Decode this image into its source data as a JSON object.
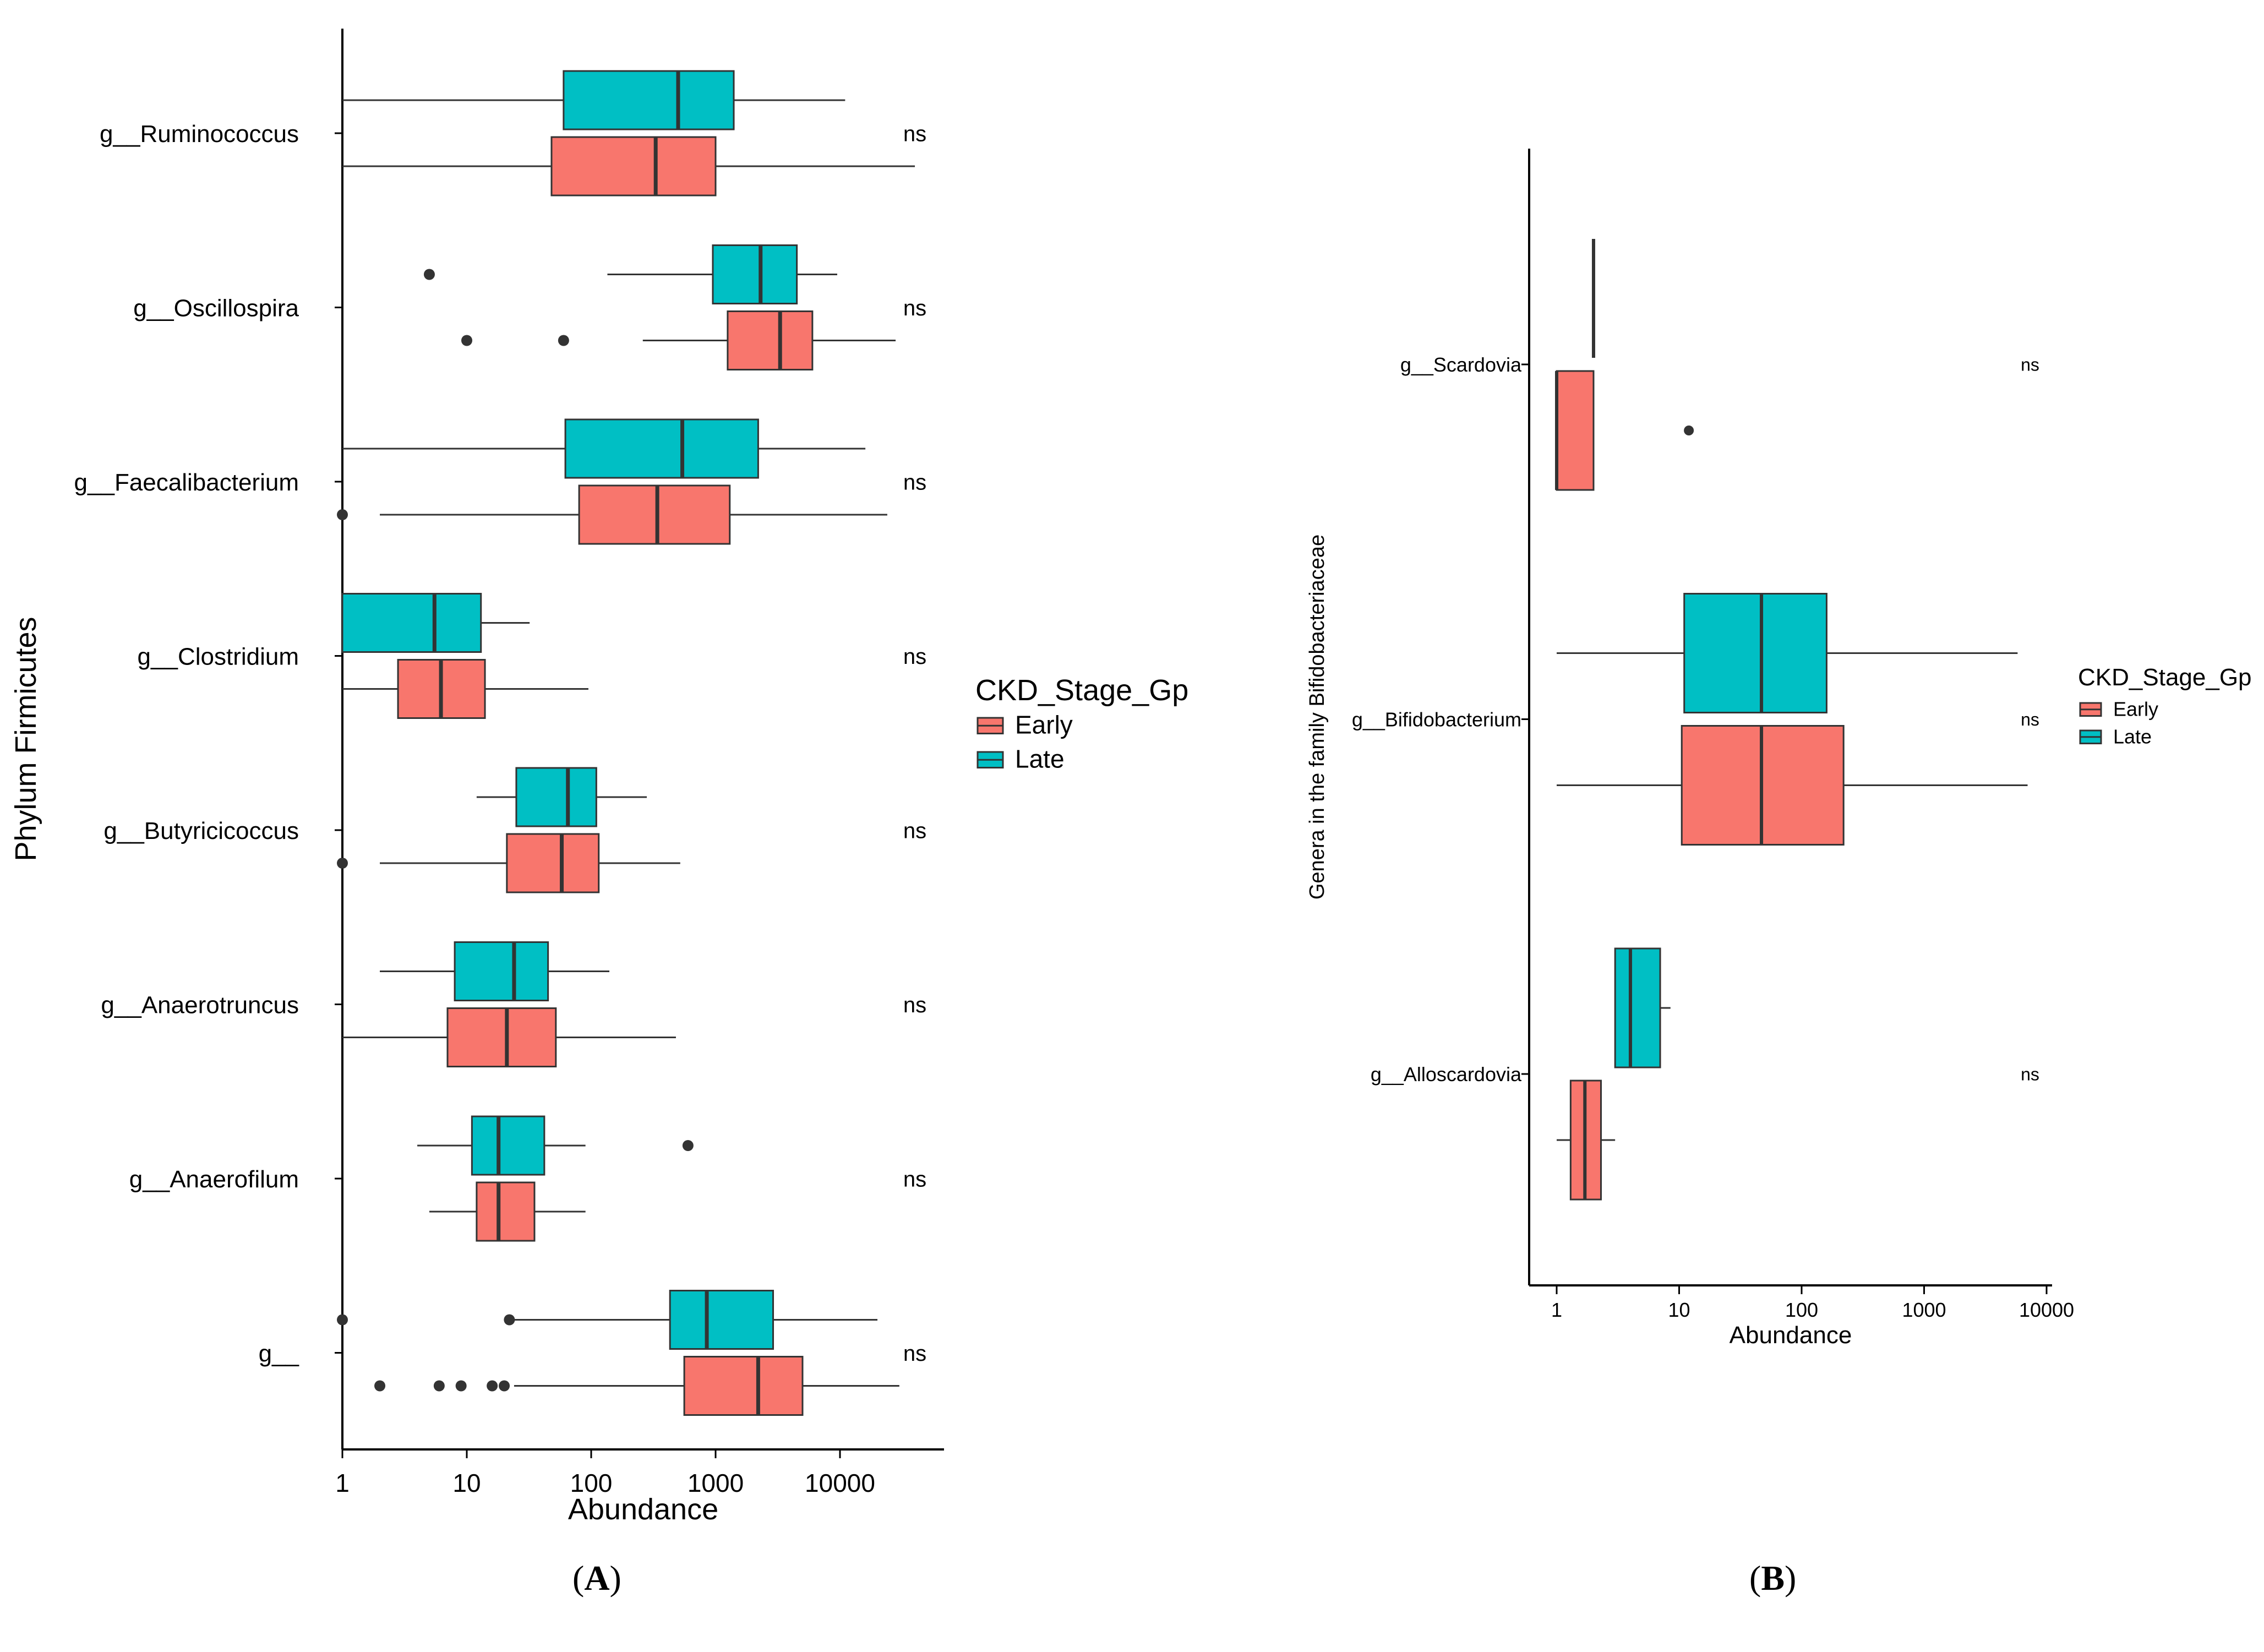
{
  "colors": {
    "early": "#F8766D",
    "late": "#00BFC4",
    "stroke": "#333333",
    "axis": "#000000"
  },
  "chart_data": [
    {
      "panel": "A",
      "type": "boxplot",
      "orientation": "horizontal",
      "xscale": "log10",
      "xlabel": "Abundance",
      "ylabel": "Phylum Firmicutes",
      "xlim": [
        0.8,
        60000
      ],
      "xticks": [
        "1",
        "10",
        "100",
        "1000",
        "10000"
      ],
      "legend": {
        "title": "CKD_Stage_Gp",
        "entries": [
          "Early",
          "Late"
        ],
        "position": "right"
      },
      "categories": [
        "g__Ruminococcus",
        "g__Oscillospira",
        "g__Faecalibacterium",
        "g__Clostridium",
        "g__Butyricicoccus",
        "g__Anaerotruncus",
        "g__Anaerofilum",
        "g__"
      ],
      "annotations": [
        "ns",
        "ns",
        "ns",
        "ns",
        "ns",
        "ns",
        "ns",
        "ns"
      ],
      "series": [
        {
          "name": "Late",
          "boxes": [
            {
              "wlo": 1,
              "q1": 60,
              "med": 500,
              "q3": 1400,
              "whi": 11000,
              "outliers": []
            },
            {
              "wlo": 135,
              "q1": 950,
              "med": 2300,
              "q3": 4500,
              "whi": 9500,
              "outliers": [
                5
              ]
            },
            {
              "wlo": 1,
              "q1": 62,
              "med": 540,
              "q3": 2200,
              "whi": 16000,
              "outliers": []
            },
            {
              "wlo": 1,
              "q1": 1,
              "med": 5.5,
              "q3": 13,
              "whi": 32,
              "outliers": []
            },
            {
              "wlo": 12,
              "q1": 25,
              "med": 65,
              "q3": 110,
              "whi": 280,
              "outliers": []
            },
            {
              "wlo": 2,
              "q1": 8,
              "med": 24,
              "q3": 45,
              "whi": 140,
              "outliers": []
            },
            {
              "wlo": 4,
              "q1": 11,
              "med": 18,
              "q3": 42,
              "whi": 90,
              "outliers": [
                600
              ]
            },
            {
              "wlo": 24,
              "q1": 430,
              "med": 850,
              "q3": 2900,
              "whi": 20000,
              "outliers": [
                1,
                22
              ]
            }
          ]
        },
        {
          "name": "Early",
          "boxes": [
            {
              "wlo": 1,
              "q1": 48,
              "med": 330,
              "q3": 1000,
              "whi": 40000,
              "outliers": []
            },
            {
              "wlo": 260,
              "q1": 1250,
              "med": 3300,
              "q3": 6000,
              "whi": 28000,
              "outliers": [
                10,
                60
              ]
            },
            {
              "wlo": 2,
              "q1": 80,
              "med": 340,
              "q3": 1300,
              "whi": 24000,
              "outliers": [
                1
              ]
            },
            {
              "wlo": 1,
              "q1": 2.8,
              "med": 6.2,
              "q3": 14,
              "whi": 95,
              "outliers": []
            },
            {
              "wlo": 2,
              "q1": 21,
              "med": 58,
              "q3": 115,
              "whi": 520,
              "outliers": [
                1
              ]
            },
            {
              "wlo": 1,
              "q1": 7,
              "med": 21,
              "q3": 52,
              "whi": 480,
              "outliers": []
            },
            {
              "wlo": 5,
              "q1": 12,
              "med": 18,
              "q3": 35,
              "whi": 90,
              "outliers": []
            },
            {
              "wlo": 24,
              "q1": 560,
              "med": 2200,
              "q3": 5000,
              "whi": 30000,
              "outliers": [
                2,
                6,
                9,
                16,
                20
              ]
            }
          ]
        }
      ]
    },
    {
      "panel": "B",
      "type": "boxplot",
      "orientation": "horizontal",
      "xscale": "log10",
      "xlabel": "Abundance",
      "ylabel": "Genera in the family Bifidobacteriaceae",
      "xlim": [
        0.8,
        11000
      ],
      "xticks": [
        "1",
        "10",
        "100",
        "1000",
        "10000"
      ],
      "legend": {
        "title": "CKD_Stage_Gp",
        "entries": [
          "Early",
          "Late"
        ],
        "position": "right"
      },
      "categories": [
        "g__Scardovia",
        "g__Bifidobacterium",
        "g__Alloscardovia"
      ],
      "annotations": [
        "ns",
        "ns",
        "ns"
      ],
      "series": [
        {
          "name": "Late",
          "boxes": [
            {
              "wlo": 2,
              "q1": 2,
              "med": 2,
              "q3": 2,
              "whi": 2,
              "outliers": []
            },
            {
              "wlo": 1,
              "q1": 11,
              "med": 47,
              "q3": 160,
              "whi": 5800,
              "outliers": []
            },
            {
              "wlo": 3,
              "q1": 3,
              "med": 4,
              "q3": 7,
              "whi": 8.5,
              "outliers": []
            }
          ]
        },
        {
          "name": "Early",
          "boxes": [
            {
              "wlo": 1,
              "q1": 1,
              "med": 1,
              "q3": 2,
              "whi": 2,
              "outliers": [
                12
              ]
            },
            {
              "wlo": 1,
              "q1": 10.5,
              "med": 47,
              "q3": 220,
              "whi": 7000,
              "outliers": []
            },
            {
              "wlo": 1,
              "q1": 1.3,
              "med": 1.7,
              "q3": 2.3,
              "whi": 3,
              "outliers": []
            }
          ]
        }
      ]
    }
  ],
  "captions": [
    "A",
    "B"
  ]
}
